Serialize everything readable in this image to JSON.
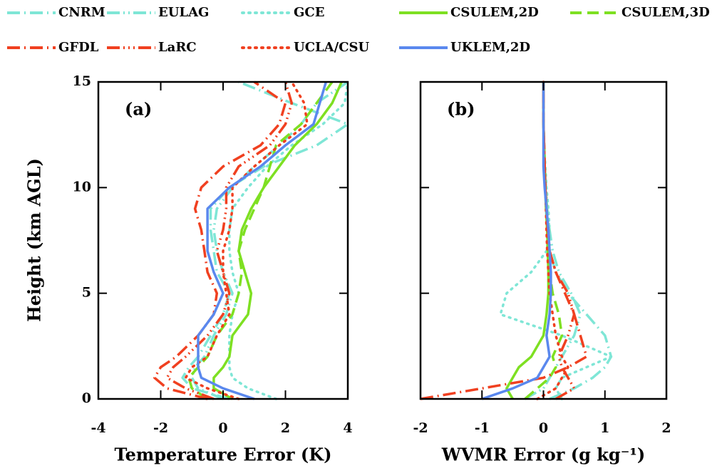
{
  "legend": [
    {
      "name": "CNRM",
      "color": "#7fe6d6",
      "dash": "dashdot"
    },
    {
      "name": "EULAG",
      "color": "#7fe6d6",
      "dash": "dashdotdot"
    },
    {
      "name": "GCE",
      "color": "#7fe6d6",
      "dash": "dotted"
    },
    {
      "name": "CSULEM,2D",
      "color": "#7ee022",
      "dash": "solid"
    },
    {
      "name": "CSULEM,3D",
      "color": "#7ee022",
      "dash": "dashed"
    },
    {
      "name": "GFDL",
      "color": "#f04020",
      "dash": "dashdot"
    },
    {
      "name": "LaRC",
      "color": "#f04020",
      "dash": "dashdotdotdot"
    },
    {
      "name": "UCLA/CSU",
      "color": "#f04020",
      "dash": "dotted"
    },
    {
      "name": "UKLEM,2D",
      "color": "#5a88ee",
      "dash": "solid"
    }
  ],
  "chart_data": [
    {
      "type": "line",
      "panel": "(a)",
      "xlabel": "Temperature Error (K)",
      "ylabel": "Height (km AGL)",
      "xlim": [
        -4,
        4
      ],
      "xticks": [
        -4,
        -2,
        0,
        2,
        4
      ],
      "ylim": [
        0,
        15
      ],
      "yticks": [
        0,
        5,
        10,
        15
      ],
      "y": [
        0,
        0.5,
        1,
        1.5,
        2,
        3,
        4,
        5,
        6,
        7,
        8,
        9,
        10,
        11,
        12,
        13,
        14,
        15
      ],
      "series": [
        {
          "values": [
            0.2,
            -1.0,
            -1.3,
            -1.1,
            -0.8,
            -0.4,
            0,
            0.2,
            -0.2,
            -0.3,
            -0.4,
            -0.4,
            0.2,
            1.3,
            3.0,
            4.0,
            2.2,
            0.5
          ]
        },
        {
          "values": [
            0,
            -0.8,
            -1.0,
            -0.9,
            -0.6,
            -0.3,
            0.1,
            0.3,
            0,
            -0.2,
            -0.3,
            -0.2,
            0.3,
            1.0,
            1.8,
            2.5,
            3.0,
            4.0
          ]
        },
        {
          "values": [
            1.7,
            0.8,
            0.3,
            0.2,
            0.2,
            0.2,
            0.3,
            0.5,
            0.3,
            0.2,
            0.2,
            0.3,
            0.8,
            1.4,
            2.2,
            3.2,
            3.9,
            4.0
          ]
        },
        {
          "values": [
            0.3,
            -0.3,
            -0.3,
            0,
            0.2,
            0.3,
            0.8,
            0.9,
            0.7,
            0.5,
            0.6,
            0.9,
            1.3,
            1.8,
            2.3,
            3.0,
            3.5,
            3.8
          ]
        },
        {
          "values": [
            -0.5,
            -1.0,
            -1.1,
            -0.8,
            -0.5,
            -0.2,
            0.3,
            0.5,
            0.6,
            0.5,
            0.7,
            1.0,
            1.3,
            1.5,
            1.7,
            2.5,
            3.0,
            3.5
          ]
        },
        {
          "values": [
            -0.5,
            -1.8,
            -2.2,
            -2.0,
            -1.5,
            -0.8,
            -0.3,
            -0.2,
            -0.5,
            -0.6,
            -0.7,
            -0.9,
            -0.7,
            0,
            1.2,
            1.8,
            2.0,
            1.0
          ]
        },
        {
          "values": [
            -0.3,
            -1.2,
            -1.8,
            -1.6,
            -1.2,
            -0.5,
            0,
            0.2,
            0,
            -0.2,
            0,
            0.1,
            0.1,
            0.5,
            1.5,
            2.0,
            2.2,
            2.0
          ]
        },
        {
          "values": [
            0.5,
            -0.5,
            -1.2,
            -1.0,
            -0.5,
            -0.2,
            0.2,
            0.1,
            0,
            0,
            0.2,
            0.3,
            0.3,
            1.0,
            1.8,
            2.7,
            2.6,
            2.2
          ]
        },
        {
          "values": [
            1.0,
            0,
            -0.7,
            -0.8,
            -0.8,
            -0.8,
            -0.3,
            0,
            -0.3,
            -0.5,
            -0.5,
            -0.5,
            0.2,
            1.2,
            2.0,
            2.9,
            3.1,
            3.3
          ]
        }
      ]
    },
    {
      "type": "line",
      "panel": "(b)",
      "xlabel": "WVMR Error (g kg⁻¹)",
      "xlim": [
        -2,
        2
      ],
      "xticks": [
        -2,
        -1,
        0,
        1,
        2
      ],
      "ylim": [
        0,
        15
      ],
      "yticks": [
        0,
        5,
        10,
        15
      ],
      "y": [
        0,
        0.5,
        1,
        1.5,
        2,
        3,
        4,
        5,
        6,
        7,
        8,
        9,
        10,
        11,
        12,
        13,
        14,
        15
      ],
      "series": [
        {
          "values": [
            0.1,
            0.5,
            0.8,
            1.0,
            1.1,
            1.0,
            0.7,
            0.4,
            0.2,
            0.1,
            0.06,
            0.04,
            0.03,
            0.02,
            0.01,
            0,
            0,
            0
          ]
        },
        {
          "values": [
            -0.3,
            0,
            0.1,
            0.2,
            0.3,
            0.5,
            0.6,
            0.45,
            0.25,
            0.15,
            0.1,
            0.06,
            0.04,
            0.02,
            0.01,
            0,
            0,
            0
          ]
        },
        {
          "values": [
            0.3,
            0.2,
            0.3,
            0.7,
            1.1,
            0.3,
            -0.7,
            -0.6,
            -0.2,
            0.05,
            0.1,
            0.08,
            0.05,
            0.03,
            0.01,
            0,
            0,
            0
          ]
        },
        {
          "values": [
            -0.5,
            -0.6,
            -0.5,
            -0.4,
            -0.2,
            0,
            0.05,
            0.08,
            0.08,
            0.07,
            0.06,
            0.05,
            0.03,
            0.02,
            0.01,
            0,
            0,
            0
          ]
        },
        {
          "values": [
            -0.3,
            -0.1,
            0.1,
            0.2,
            0.15,
            0.3,
            0.25,
            0.15,
            0.1,
            0.08,
            0.06,
            0.04,
            0.03,
            0.02,
            0.01,
            0,
            0,
            0
          ]
        },
        {
          "values": [
            -2.0,
            -1.0,
            0,
            0.4,
            0.7,
            0.6,
            0.5,
            0.35,
            0.2,
            0.1,
            0.08,
            0.05,
            0.03,
            0.02,
            0.01,
            0,
            0,
            0
          ]
        },
        {
          "values": [
            0.2,
            0.5,
            0.4,
            0.3,
            0.25,
            0.4,
            0.5,
            0.4,
            0.2,
            0.1,
            0.07,
            0.05,
            0.03,
            0.02,
            0.01,
            0,
            0,
            0
          ]
        },
        {
          "values": [
            -0.1,
            0.2,
            0.3,
            0.4,
            0.3,
            0.2,
            0.15,
            0.1,
            0.08,
            0.06,
            0.05,
            0.04,
            0.03,
            0.02,
            0.01,
            0,
            0,
            0
          ]
        },
        {
          "values": [
            -1.0,
            -0.5,
            -0.1,
            0,
            0.1,
            0.05,
            0.1,
            0.12,
            0.12,
            0.1,
            0.08,
            0.05,
            0.02,
            0,
            0,
            0,
            0,
            0
          ]
        }
      ]
    }
  ]
}
